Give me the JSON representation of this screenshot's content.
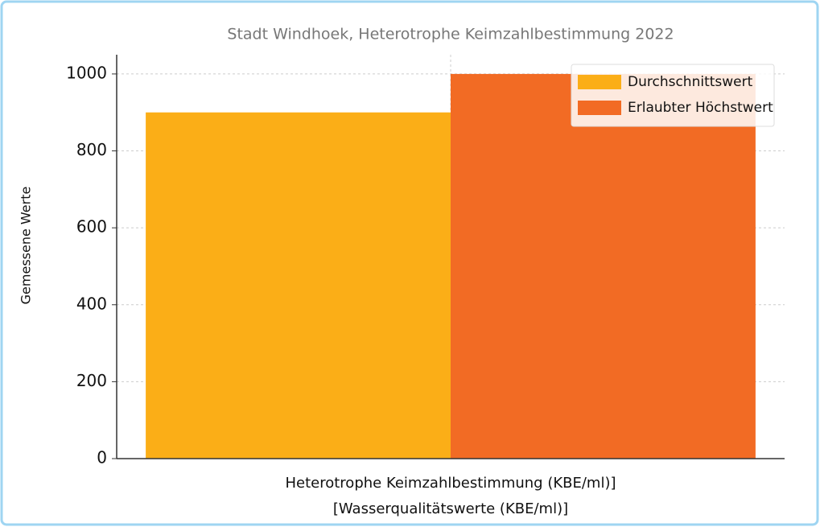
{
  "chart_data": {
    "type": "bar",
    "title": "Stadt Windhoek, Heterotrophe Keimzahlbestimmung 2022",
    "x_label": [
      "Heterotrophe Keimzahlbestimmung (KBE/ml)]",
      "[Wasserqualitätswerte (KBE/ml)]"
    ],
    "y_label": "Gemessene Werte",
    "categories": [
      null
    ],
    "series": [
      {
        "name": "Durchschnittswert",
        "color": "#fbae17",
        "values": [
          900
        ]
      },
      {
        "name": "Erlaubter Höchstwert",
        "color": "#f26b24",
        "values": [
          1000
        ]
      }
    ],
    "ylim": [
      0,
      1050
    ],
    "yticks": [
      0,
      200,
      400,
      600,
      800,
      1000
    ],
    "grid": true,
    "legend": "upper right"
  }
}
